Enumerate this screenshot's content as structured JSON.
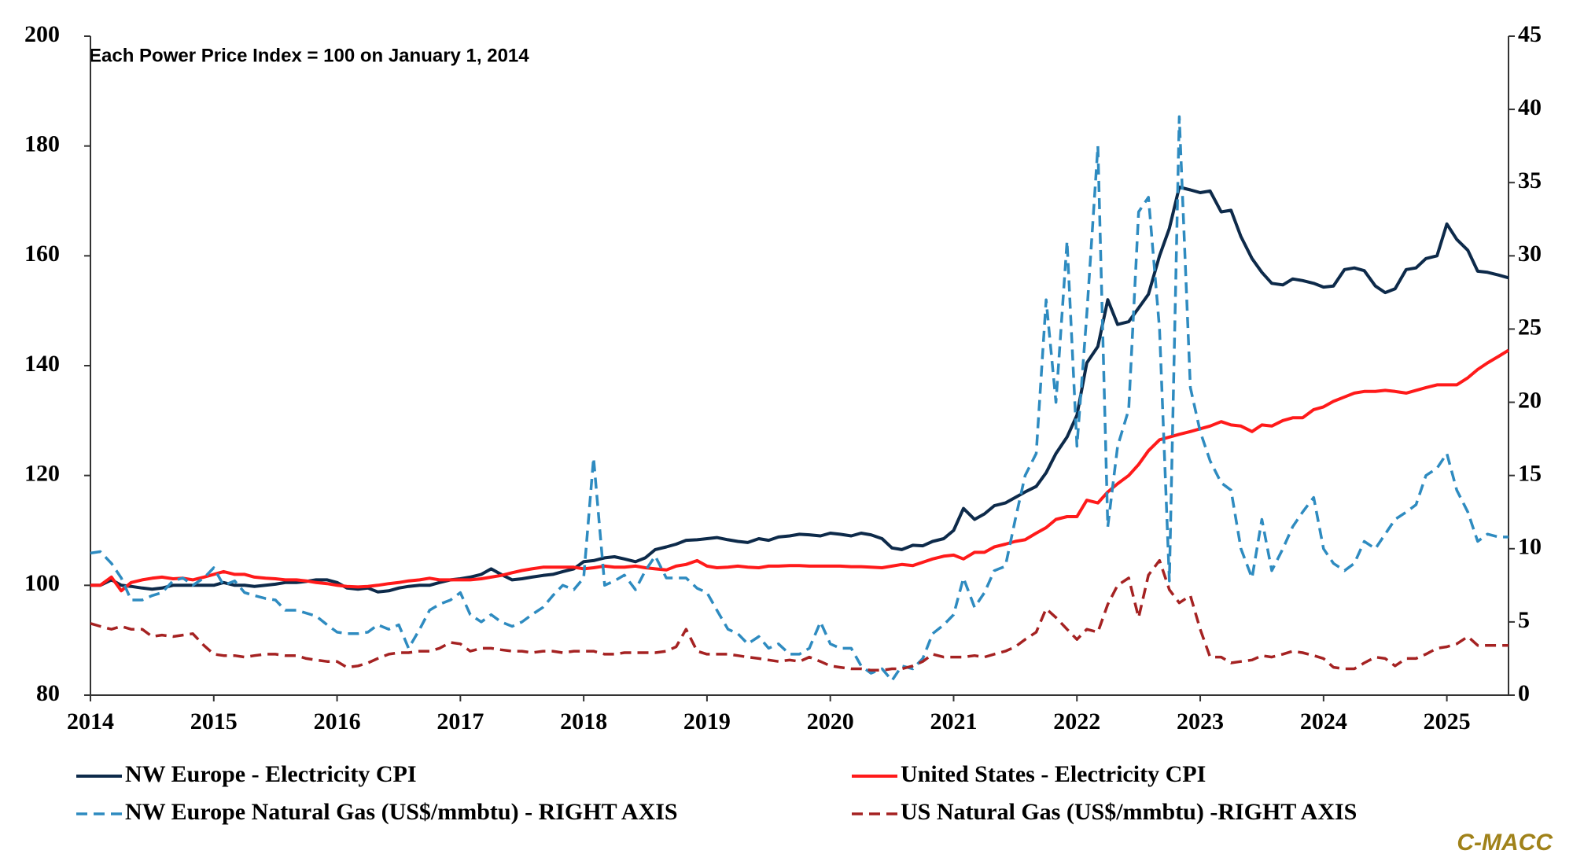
{
  "chart_data": {
    "type": "line",
    "subtitle": "Each Power Price Index = 100 on January 1, 2014",
    "source": "C-MACC",
    "x": [
      2014,
      2014.08,
      2014.17,
      2014.25,
      2014.33,
      2014.42,
      2014.5,
      2014.58,
      2014.67,
      2014.75,
      2014.83,
      2014.92,
      2015,
      2015.08,
      2015.17,
      2015.25,
      2015.33,
      2015.42,
      2015.5,
      2015.58,
      2015.67,
      2015.75,
      2015.83,
      2015.92,
      2016,
      2016.08,
      2016.17,
      2016.25,
      2016.33,
      2016.42,
      2016.5,
      2016.58,
      2016.67,
      2016.75,
      2016.83,
      2016.92,
      2017,
      2017.08,
      2017.17,
      2017.25,
      2017.33,
      2017.42,
      2017.5,
      2017.58,
      2017.67,
      2017.75,
      2017.83,
      2017.92,
      2018,
      2018.08,
      2018.17,
      2018.25,
      2018.33,
      2018.42,
      2018.5,
      2018.58,
      2018.67,
      2018.75,
      2018.83,
      2018.92,
      2019,
      2019.08,
      2019.17,
      2019.25,
      2019.33,
      2019.42,
      2019.5,
      2019.58,
      2019.67,
      2019.75,
      2019.83,
      2019.92,
      2020,
      2020.08,
      2020.17,
      2020.25,
      2020.33,
      2020.42,
      2020.5,
      2020.58,
      2020.67,
      2020.75,
      2020.83,
      2020.92,
      2021,
      2021.08,
      2021.17,
      2021.25,
      2021.33,
      2021.42,
      2021.5,
      2021.58,
      2021.67,
      2021.75,
      2021.83,
      2021.92,
      2022,
      2022.08,
      2022.17,
      2022.25,
      2022.33,
      2022.42,
      2022.5,
      2022.58,
      2022.67,
      2022.75,
      2022.83,
      2022.92,
      2023,
      2023.08,
      2023.17,
      2023.25,
      2023.33,
      2023.42,
      2023.5,
      2023.58,
      2023.67,
      2023.75,
      2023.83,
      2023.92,
      2024,
      2024.08,
      2024.17,
      2024.25,
      2024.33,
      2024.42,
      2024.5,
      2024.58,
      2024.67,
      2024.75,
      2024.83,
      2024.92,
      2025,
      2025.08,
      2025.17,
      2025.25,
      2025.33,
      2025.42,
      2025.5
    ],
    "series": [
      {
        "name": "NW Europe - Electricity CPI",
        "color": "#0d2a4a",
        "dashed": false,
        "values": [
          100,
          100,
          101,
          100,
          99.8,
          99.5,
          99.3,
          99.5,
          100,
          100,
          100,
          100,
          100,
          100.5,
          100,
          100,
          99.8,
          100,
          100.2,
          100.5,
          100.5,
          100.7,
          101,
          101,
          100.5,
          99.5,
          99.3,
          99.5,
          98.8,
          99,
          99.5,
          99.8,
          100,
          100,
          100.5,
          101,
          101.2,
          101.5,
          102,
          103,
          102,
          101,
          101.2,
          101.5,
          101.8,
          102,
          102.5,
          103,
          104.3,
          104.5,
          105,
          105.2,
          104.8,
          104.3,
          105,
          106.5,
          107,
          107.5,
          108.2,
          108.3,
          108.5,
          108.7,
          108.3,
          108,
          107.8,
          108.5,
          108.2,
          108.8,
          109,
          109.3,
          109.2,
          109,
          109.5,
          109.3,
          109,
          109.5,
          109.2,
          108.5,
          106.8,
          106.5,
          107.3,
          107.2,
          108,
          108.5,
          110,
          114,
          112,
          113,
          114.5,
          115,
          116,
          117,
          118,
          120.5,
          124,
          127,
          131,
          140.5,
          143.5,
          152,
          147.5,
          148,
          150.5,
          153,
          160,
          165,
          172.5,
          172,
          171.5,
          171.8,
          168,
          168.3,
          163.5,
          159.5,
          157,
          155,
          154.7,
          155.8,
          155.5,
          155,
          154.3,
          154.5,
          157.5,
          157.8,
          157.3,
          154.5,
          153.3,
          154,
          157.5,
          157.8,
          159.5,
          160,
          165.8,
          163,
          161,
          157.2,
          157,
          156.5,
          156
        ]
      },
      {
        "name": "United States - Electricity CPI",
        "color": "#ff1a1a",
        "dashed": false,
        "values": [
          100,
          100,
          101.5,
          99,
          100.5,
          101,
          101.3,
          101.5,
          101.2,
          101.3,
          101,
          101.5,
          102,
          102.5,
          102,
          102,
          101.5,
          101.3,
          101.2,
          101,
          101,
          100.8,
          100.5,
          100.3,
          100,
          99.8,
          99.7,
          99.8,
          100,
          100.3,
          100.5,
          100.8,
          101,
          101.3,
          101,
          101,
          101,
          101,
          101.2,
          101.5,
          101.8,
          102.3,
          102.7,
          103,
          103.3,
          103.3,
          103.3,
          103.3,
          103,
          103.2,
          103.5,
          103.3,
          103.3,
          103.5,
          103.2,
          103,
          102.8,
          103.5,
          103.8,
          104.5,
          103.5,
          103.2,
          103.3,
          103.5,
          103.3,
          103.2,
          103.5,
          103.5,
          103.6,
          103.6,
          103.5,
          103.5,
          103.5,
          103.5,
          103.4,
          103.4,
          103.3,
          103.2,
          103.5,
          103.8,
          103.6,
          104.2,
          104.8,
          105.3,
          105.5,
          104.8,
          106,
          106,
          107,
          107.5,
          108,
          108.3,
          109.5,
          110.5,
          112,
          112.5,
          112.5,
          115.5,
          115,
          117,
          118.5,
          120,
          122,
          124.5,
          126.5,
          127,
          127.5,
          128,
          128.5,
          129,
          129.8,
          129.2,
          129,
          128,
          129.2,
          129,
          130,
          130.5,
          130.5,
          132,
          132.5,
          133.5,
          134.3,
          135,
          135.3,
          135.3,
          135.5,
          135.3,
          135,
          135.5,
          136,
          136.5,
          136.5,
          136.5,
          137.8,
          139.3,
          140.5,
          141.7,
          142.8
        ]
      },
      {
        "name": "NW Europe Natural Gas (US$/mmbtu) - RIGHT AXIS",
        "color": "#2e8bc0",
        "dashed": true,
        "axis": "y2",
        "values": [
          9.7,
          9.8,
          9,
          8,
          6.5,
          6.5,
          6.8,
          7,
          7.8,
          8,
          7.5,
          8,
          8.7,
          7.5,
          7.8,
          7,
          6.8,
          6.6,
          6.5,
          5.8,
          5.8,
          5.6,
          5.4,
          4.8,
          4.3,
          4.2,
          4.2,
          4.3,
          4.8,
          4.5,
          4.8,
          3.2,
          4.5,
          5.8,
          6.2,
          6.5,
          7,
          5.5,
          5,
          5.5,
          5,
          4.7,
          5,
          5.5,
          6,
          6.8,
          7.5,
          7.2,
          8,
          16.2,
          7.5,
          7.8,
          8.2,
          7.2,
          8.5,
          9.5,
          8,
          8,
          8,
          7.3,
          7,
          5.8,
          4.5,
          4.2,
          3.5,
          4,
          3.2,
          3.5,
          2.8,
          2.8,
          3.2,
          5,
          3.5,
          3.2,
          3.2,
          2,
          1.5,
          1.8,
          1,
          2,
          1.8,
          2.5,
          4.2,
          4.8,
          5.5,
          8,
          6,
          7,
          8.5,
          8.8,
          12,
          15,
          16.5,
          27,
          20,
          31,
          17,
          26,
          37.5,
          11.5,
          17,
          19.5,
          33,
          34,
          25,
          7.8,
          39.5,
          21,
          18,
          16,
          14.5,
          14,
          10,
          8,
          12,
          8.5,
          10,
          11.5,
          12.5,
          13.5,
          10,
          9,
          8.5,
          9,
          10.5,
          10,
          11,
          12,
          12.5,
          13,
          15,
          15.5,
          16.5,
          14,
          12.5,
          10.5,
          11,
          10.8,
          10.8
        ]
      },
      {
        "name": "US Natural Gas (US$/mmbtu) -RIGHT AXIS",
        "color": "#a52222",
        "dashed": true,
        "axis": "y2",
        "values": [
          4.9,
          4.7,
          4.5,
          4.7,
          4.5,
          4.5,
          4,
          4.1,
          4,
          4.1,
          4.2,
          3.4,
          2.8,
          2.7,
          2.7,
          2.6,
          2.7,
          2.8,
          2.8,
          2.7,
          2.7,
          2.5,
          2.4,
          2.3,
          2.3,
          1.9,
          2,
          2.2,
          2.5,
          2.8,
          2.9,
          2.9,
          3,
          3,
          3.2,
          3.6,
          3.5,
          3,
          3.2,
          3.2,
          3.1,
          3,
          3,
          2.9,
          3,
          3,
          2.9,
          3,
          3,
          3,
          2.8,
          2.8,
          2.9,
          2.9,
          2.9,
          2.9,
          3,
          3.3,
          4.5,
          3,
          2.8,
          2.8,
          2.8,
          2.7,
          2.6,
          2.5,
          2.4,
          2.3,
          2.4,
          2.3,
          2.6,
          2.3,
          2,
          1.9,
          1.8,
          1.8,
          1.7,
          1.7,
          1.8,
          1.8,
          2,
          2.3,
          2.8,
          2.6,
          2.6,
          2.6,
          2.7,
          2.6,
          2.8,
          3,
          3.3,
          3.8,
          4.3,
          5.9,
          5.3,
          4.5,
          3.8,
          4.5,
          4.3,
          6.2,
          7.5,
          8,
          5.3,
          8.2,
          9.2,
          7.2,
          6.3,
          6.8,
          4.5,
          2.6,
          2.6,
          2.2,
          2.3,
          2.4,
          2.7,
          2.6,
          2.8,
          3,
          2.9,
          2.7,
          2.5,
          1.9,
          1.8,
          1.8,
          2.2,
          2.6,
          2.5,
          2,
          2.5,
          2.5,
          2.8,
          3.2,
          3.3,
          3.5,
          4,
          3.4,
          3.4,
          3.4,
          3.4
        ]
      }
    ],
    "xlim": [
      2014,
      2025.5
    ],
    "xticks": [
      2014,
      2015,
      2016,
      2017,
      2018,
      2019,
      2020,
      2021,
      2022,
      2023,
      2024,
      2025
    ],
    "ylim": [
      80,
      200
    ],
    "yticks": [
      80,
      100,
      120,
      140,
      160,
      180,
      200
    ],
    "y2lim": [
      0,
      45
    ],
    "y2ticks": [
      0,
      5,
      10,
      15,
      20,
      25,
      30,
      35,
      40,
      45
    ],
    "grid": false,
    "legend": "bottom"
  }
}
